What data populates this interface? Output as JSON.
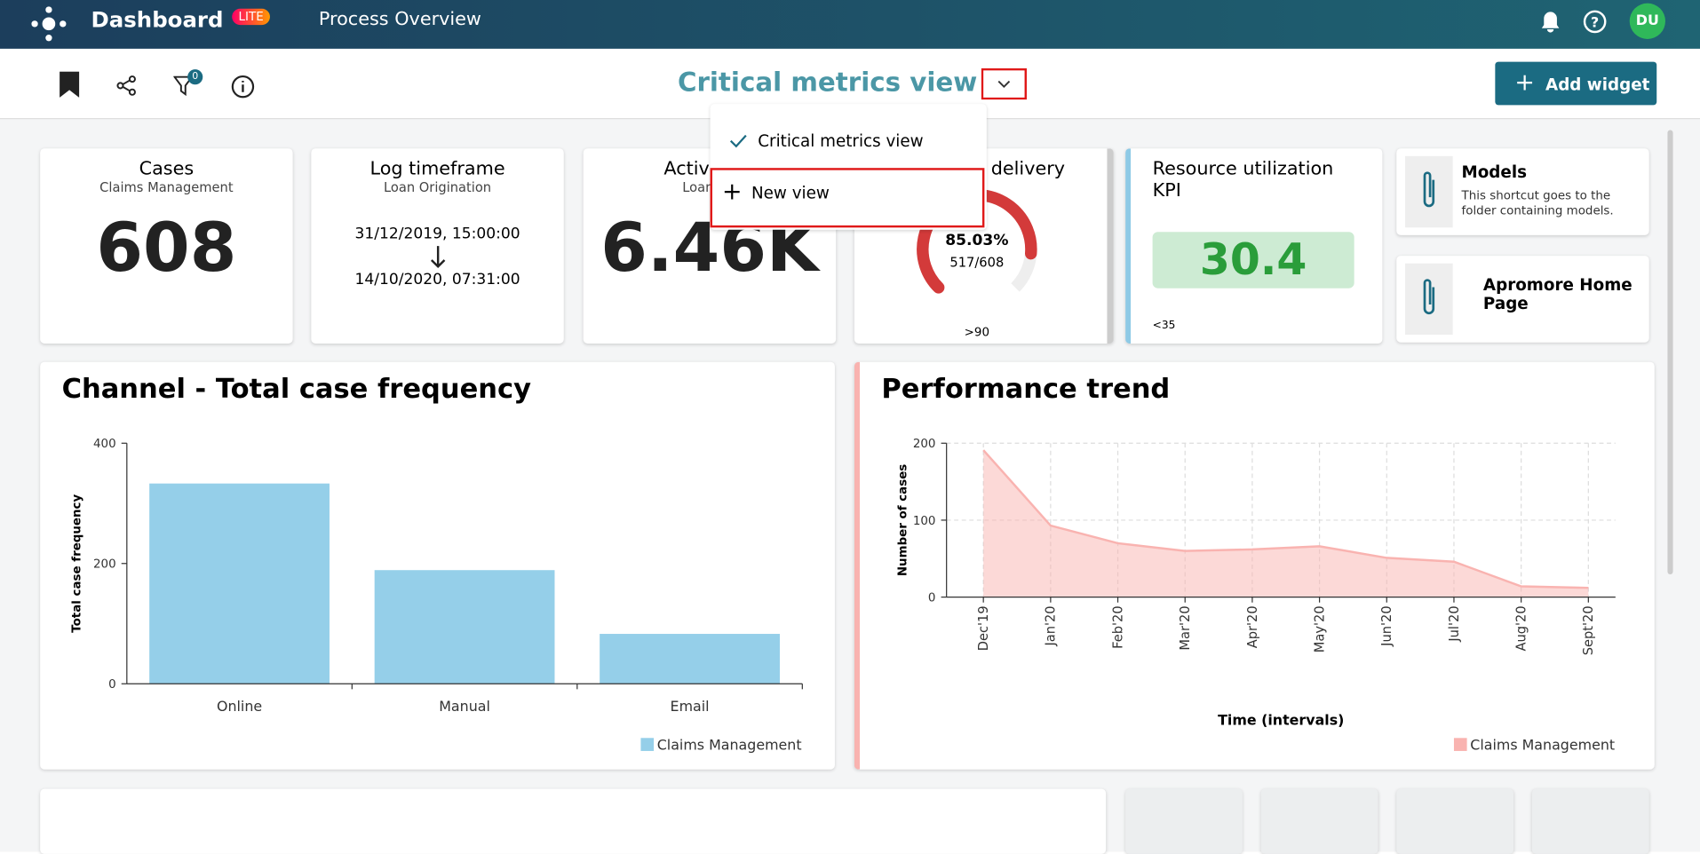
{
  "header": {
    "app_title": "Dashboard",
    "badge": "LITE",
    "section": "Process Overview",
    "avatar": "DU"
  },
  "toolbar": {
    "filter_count": "0",
    "view_title": "Critical metrics view",
    "add_button": "Add widget"
  },
  "dropdown": {
    "items": [
      "Critical metrics view",
      "New view"
    ]
  },
  "widgets": {
    "cases": {
      "title": "Cases",
      "subtitle": "Claims Management",
      "value": "608"
    },
    "log_timeframe": {
      "title": "Log timeframe",
      "subtitle": "Loan Origination",
      "start": "31/12/2019, 15:00:00",
      "end": "14/10/2020, 07:31:00"
    },
    "activity": {
      "title": "Activity in",
      "subtitle": "Loan Ori",
      "value": "6.46K"
    },
    "delivery": {
      "title": "delivery",
      "gauge_value": 85.03,
      "gauge_label": "85.03%",
      "count": "517/608",
      "threshold": ">90"
    },
    "resource": {
      "title": "Resource utilization KPI",
      "value": "30.4",
      "threshold": "<35"
    },
    "shortcuts": [
      {
        "title": "Models",
        "description": "This shortcut goes to the folder containing models."
      },
      {
        "title": "Apromore Home Page"
      }
    ]
  },
  "chart_data": [
    {
      "type": "bar",
      "title": "Channel - Total case frequency",
      "ylabel": "Total case frequency",
      "categories": [
        "Online",
        "Manual",
        "Email"
      ],
      "series": [
        {
          "name": "Claims Management",
          "color": "#95cfe9",
          "values": [
            333,
            189,
            83
          ]
        }
      ],
      "ylim": [
        0,
        400
      ],
      "yticks": [
        0,
        200,
        400
      ]
    },
    {
      "type": "area",
      "title": "Performance trend",
      "ylabel": "Number of cases",
      "xlabel": "Time (intervals)",
      "categories": [
        "Dec'19",
        "Jan'20",
        "Feb'20",
        "Mar'20",
        "Apr'20",
        "May'20",
        "Jun'20",
        "Jul'20",
        "Aug'20",
        "Sept'20"
      ],
      "series": [
        {
          "name": "Claims Management",
          "color": "#f9b3b0",
          "values": [
            191,
            93,
            70,
            60,
            62,
            66,
            51,
            46,
            14,
            12
          ]
        }
      ],
      "ylim": [
        0,
        200
      ],
      "yticks": [
        0,
        100,
        200
      ],
      "grid": true
    }
  ]
}
